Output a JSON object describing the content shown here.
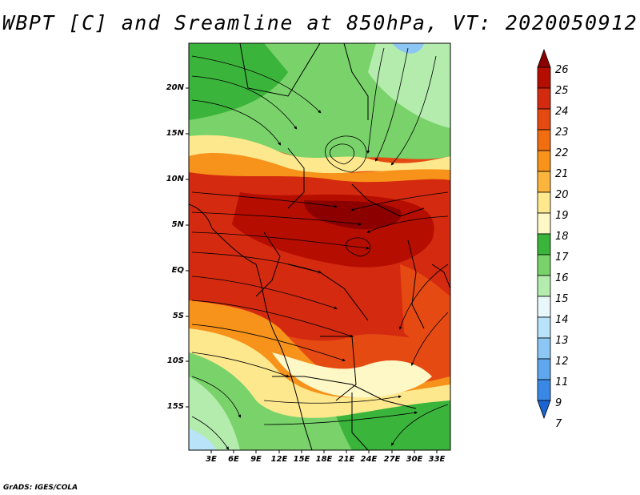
{
  "title": "WBPT [C] and Sreamline at 850hPa, VT: 2020050912",
  "credit": "GrADS: IGES/COLA",
  "map": {
    "lat_labels": [
      "20N",
      "15N",
      "10N",
      "5N",
      "EQ",
      "5S",
      "10S",
      "15S"
    ],
    "lon_labels": [
      "3E",
      "6E",
      "9E",
      "12E",
      "15E",
      "18E",
      "21E",
      "24E",
      "27E",
      "30E",
      "33E"
    ]
  },
  "colorbar": {
    "levels": [
      "26",
      "25",
      "24",
      "23",
      "22",
      "21",
      "20",
      "19",
      "18",
      "17",
      "16",
      "15",
      "14",
      "13",
      "12",
      "11",
      "9",
      "7"
    ],
    "colors": [
      "#8c0000",
      "#b50d00",
      "#d42a10",
      "#e64a13",
      "#f06e10",
      "#f7921a",
      "#fbb53c",
      "#fde88e",
      "#fef7c6",
      "#3bb43b",
      "#79d26a",
      "#b4ecae",
      "#e8f8fa",
      "#b9e3f9",
      "#8cc6f4",
      "#5ea7ee",
      "#3a88e6",
      "#1a64d3"
    ]
  }
}
